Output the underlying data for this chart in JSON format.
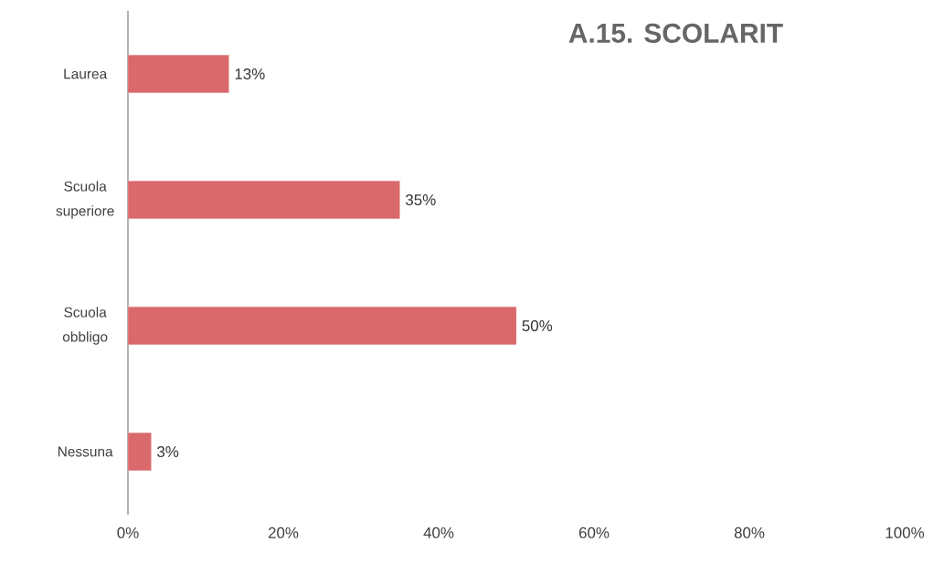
{
  "chart_data": {
    "type": "bar",
    "orientation": "horizontal",
    "title": "A.15. SCOLARIT",
    "categories": [
      "Laurea",
      "Scuola superiore",
      "Scuola obbligo",
      "Nessuna"
    ],
    "values": [
      13,
      35,
      50,
      3
    ],
    "value_labels": [
      "13%",
      "35%",
      "50%",
      "3%"
    ],
    "color": "#d9696b",
    "xlim": [
      0,
      100
    ],
    "xticks": [
      {
        "value": 0,
        "label": "0%"
      },
      {
        "value": 20,
        "label": "20%"
      },
      {
        "value": 40,
        "label": "40%"
      },
      {
        "value": 60,
        "label": "60%"
      },
      {
        "value": 80,
        "label": "80%"
      },
      {
        "value": 100,
        "label": "100%"
      }
    ],
    "grid": false
  }
}
